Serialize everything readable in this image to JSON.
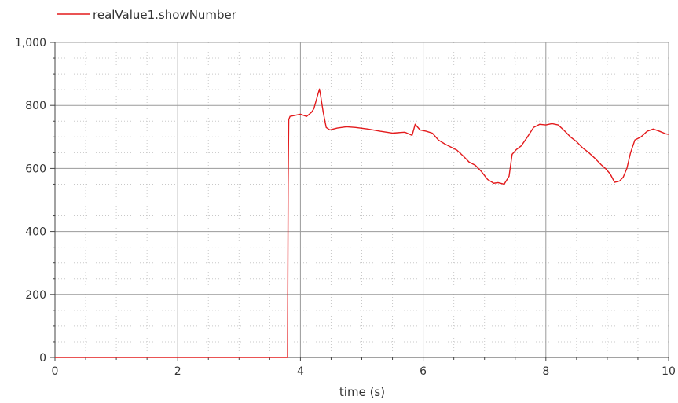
{
  "colors": {
    "series": "#e31a1c",
    "axis": "#444444",
    "major_grid": "#9a9a9a",
    "minor_grid": "#c8c8c8",
    "background": "#ffffff"
  },
  "chart_data": {
    "type": "line",
    "title": "",
    "xlabel": "time (s)",
    "ylabel": "",
    "xlim": [
      0,
      10
    ],
    "ylim": [
      0,
      1000
    ],
    "x_ticks": [
      "0",
      "2",
      "4",
      "6",
      "8",
      "10"
    ],
    "y_ticks": [
      "0",
      "200",
      "400",
      "600",
      "800",
      "1,000"
    ],
    "grid": true,
    "legend_position": "top-left",
    "series": [
      {
        "name": "realValue1.showNumber",
        "x": [
          0,
          3.79,
          3.8,
          3.81,
          3.83,
          3.9,
          4.0,
          4.1,
          4.18,
          4.22,
          4.27,
          4.31,
          4.33,
          4.37,
          4.42,
          4.48,
          4.6,
          4.75,
          4.9,
          5.1,
          5.3,
          5.5,
          5.7,
          5.82,
          5.87,
          5.95,
          6.05,
          6.15,
          6.25,
          6.35,
          6.45,
          6.55,
          6.65,
          6.75,
          6.85,
          6.95,
          7.05,
          7.15,
          7.22,
          7.32,
          7.4,
          7.45,
          7.52,
          7.6,
          7.7,
          7.8,
          7.9,
          8.0,
          8.1,
          8.2,
          8.3,
          8.4,
          8.5,
          8.6,
          8.7,
          8.8,
          8.9,
          8.98,
          9.05,
          9.12,
          9.2,
          9.26,
          9.32,
          9.38,
          9.45,
          9.55,
          9.65,
          9.75,
          9.85,
          9.95,
          10.0
        ],
        "y": [
          0,
          0,
          550,
          755,
          765,
          768,
          772,
          765,
          778,
          790,
          825,
          852,
          830,
          780,
          730,
          722,
          728,
          732,
          730,
          725,
          718,
          712,
          715,
          705,
          740,
          722,
          718,
          712,
          690,
          678,
          668,
          658,
          640,
          620,
          610,
          590,
          565,
          553,
          555,
          550,
          575,
          645,
          660,
          672,
          700,
          730,
          740,
          738,
          742,
          738,
          720,
          700,
          685,
          665,
          650,
          632,
          612,
          598,
          582,
          556,
          560,
          572,
          600,
          650,
          690,
          700,
          718,
          725,
          718,
          710,
          708
        ]
      }
    ]
  }
}
